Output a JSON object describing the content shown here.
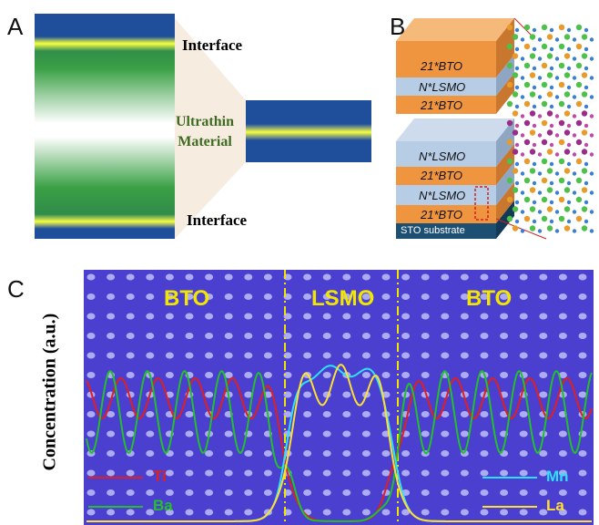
{
  "panel_a": {
    "label": "A",
    "interface_top": "Interface",
    "material": "Ultrathin Material",
    "interface_bottom": "Interface"
  },
  "panel_b": {
    "label": "B",
    "layers": [
      "21*BTO",
      "N*LSMO",
      "21*BTO",
      "N*LSMO",
      "21*BTO",
      "N*LSMO",
      "21*BTO"
    ],
    "substrate": "STO substrate"
  },
  "panel_c": {
    "label": "C",
    "regions": [
      "BTO",
      "LSMO",
      "BTO"
    ],
    "y_label": "Concentration (a.u.)",
    "legend": [
      "Ti",
      "Ba",
      "Mn",
      "La"
    ]
  }
}
